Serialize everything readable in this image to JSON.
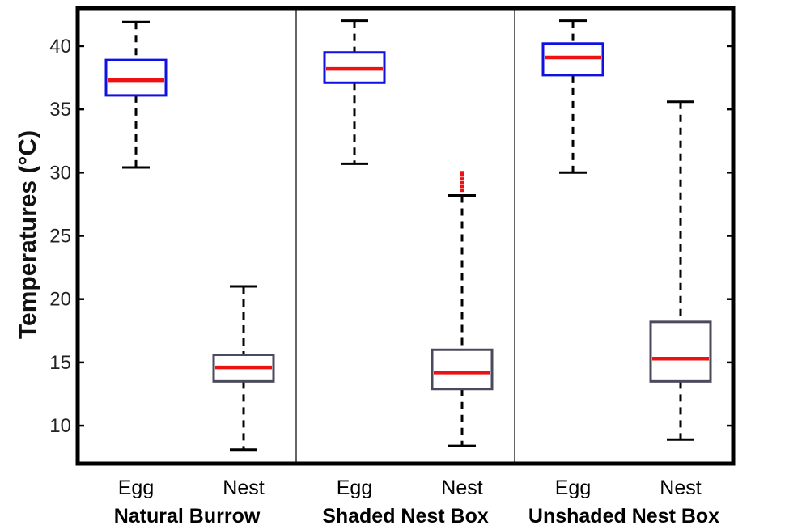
{
  "chart_data": {
    "type": "box",
    "title": "",
    "xlabel": "",
    "ylabel": "Temperatures (°C)",
    "ylim": [
      7,
      43
    ],
    "yticks": [
      10,
      15,
      20,
      25,
      30,
      35,
      40
    ],
    "grid": false,
    "groups": [
      {
        "label": "Natural Burrow",
        "boxes": [
          {
            "category": "Egg",
            "whisker_low": 30.4,
            "q1": 36.1,
            "median": 37.3,
            "q3": 38.9,
            "whisker_high": 41.9,
            "outliers": [],
            "box_color": "#1010e0"
          },
          {
            "category": "Nest",
            "whisker_low": 8.1,
            "q1": 13.5,
            "median": 14.6,
            "q3": 15.6,
            "whisker_high": 21.0,
            "outliers": [],
            "box_color": "#4a4a5c"
          }
        ]
      },
      {
        "label": "Shaded Nest Box",
        "boxes": [
          {
            "category": "Egg",
            "whisker_low": 30.7,
            "q1": 37.1,
            "median": 38.2,
            "q3": 39.5,
            "whisker_high": 42.0,
            "outliers": [],
            "box_color": "#1010e0"
          },
          {
            "category": "Nest",
            "whisker_low": 8.4,
            "q1": 12.9,
            "median": 14.2,
            "q3": 16.0,
            "whisker_high": 28.2,
            "outliers": [
              28.6,
              28.9,
              29.2,
              29.5,
              29.8,
              30.0
            ],
            "box_color": "#4a4a5c"
          }
        ]
      },
      {
        "label": "Unshaded Nest Box",
        "boxes": [
          {
            "category": "Egg",
            "whisker_low": 30.0,
            "q1": 37.7,
            "median": 39.1,
            "q3": 40.2,
            "whisker_high": 42.0,
            "outliers": [],
            "box_color": "#1010e0"
          },
          {
            "category": "Nest",
            "whisker_low": 8.9,
            "q1": 13.5,
            "median": 15.3,
            "q3": 18.2,
            "whisker_high": 35.6,
            "outliers": [],
            "box_color": "#4a4a5c"
          }
        ]
      }
    ],
    "colors": {
      "median": "#ee1111",
      "whisker": "#000000",
      "outlier": "#ee1111",
      "frame": "#000000",
      "divider": "#333333"
    }
  }
}
